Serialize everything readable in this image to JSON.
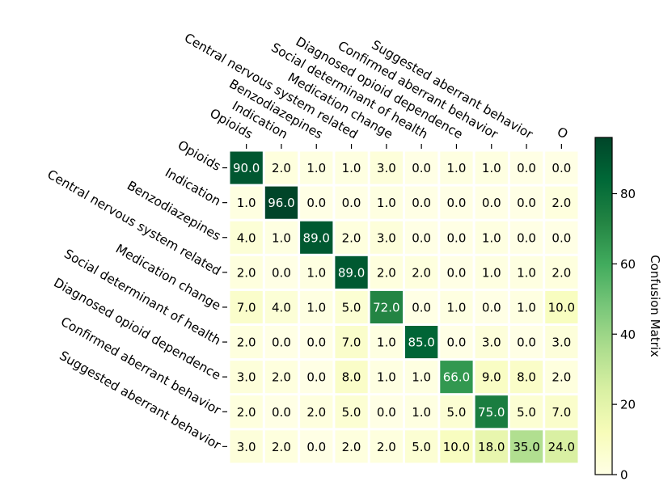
{
  "chart_data": {
    "type": "heatmap",
    "rows": [
      "Opioids",
      "Indication",
      "Benzodiazepines",
      "Central nervous system related",
      "Medication change",
      "Social determinant of health",
      "Diagnosed opioid dependence",
      "Confirmed aberrant behavior",
      "Suggested aberrant behavior"
    ],
    "columns": [
      "Opioids",
      "Indication",
      "Benzodiazepines",
      "Central nervous system related",
      "Medication change",
      "Social determinant of health",
      "Diagnosed opioid dependence",
      "Confirmed aberrant behavior",
      "Suggested aberrant behavior",
      "O"
    ],
    "values": [
      [
        90.0,
        2.0,
        1.0,
        1.0,
        3.0,
        0.0,
        1.0,
        1.0,
        0.0,
        0.0
      ],
      [
        1.0,
        96.0,
        0.0,
        0.0,
        1.0,
        0.0,
        0.0,
        0.0,
        0.0,
        2.0
      ],
      [
        4.0,
        1.0,
        89.0,
        2.0,
        3.0,
        0.0,
        0.0,
        1.0,
        0.0,
        0.0
      ],
      [
        2.0,
        0.0,
        1.0,
        89.0,
        2.0,
        2.0,
        0.0,
        1.0,
        1.0,
        2.0
      ],
      [
        7.0,
        4.0,
        1.0,
        5.0,
        72.0,
        0.0,
        1.0,
        0.0,
        1.0,
        10.0
      ],
      [
        2.0,
        0.0,
        0.0,
        7.0,
        1.0,
        85.0,
        0.0,
        3.0,
        0.0,
        3.0
      ],
      [
        3.0,
        2.0,
        0.0,
        8.0,
        1.0,
        1.0,
        66.0,
        9.0,
        8.0,
        2.0
      ],
      [
        2.0,
        0.0,
        2.0,
        5.0,
        0.0,
        1.0,
        5.0,
        75.0,
        5.0,
        7.0
      ],
      [
        3.0,
        2.0,
        0.0,
        2.0,
        2.0,
        5.0,
        10.0,
        18.0,
        35.0,
        24.0
      ]
    ],
    "colorbar": {
      "label": "Confusion Matrix",
      "range": [
        0,
        96
      ],
      "ticks": [
        0,
        20,
        40,
        60,
        80
      ],
      "colormap": "Greens-yellow",
      "low_color": "#ffffe5",
      "high_color": "#004529"
    },
    "grid": false,
    "cell_border_color": "#ffffff"
  }
}
